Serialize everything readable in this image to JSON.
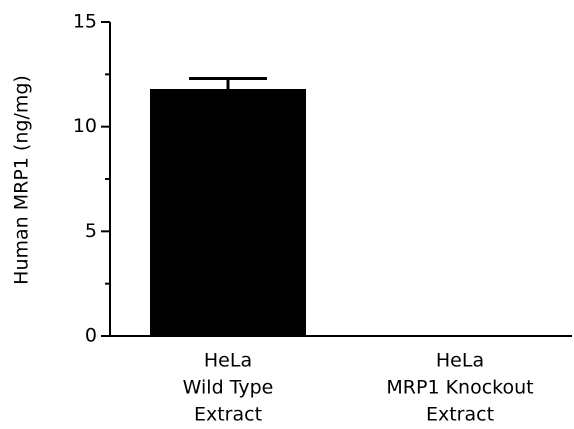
{
  "chart_data": {
    "type": "bar",
    "y_label": "Human MRP1 (ng/mg)",
    "categories": [
      [
        "HeLa",
        "Wild Type",
        "Extract"
      ],
      [
        "HeLa",
        "MRP1 Knockout",
        "Extract"
      ]
    ],
    "values": [
      11.8,
      0
    ],
    "errors": [
      0.5,
      null
    ],
    "color": "#000000",
    "ylim": [
      0,
      15
    ],
    "yticks": [
      0,
      5,
      10,
      15
    ],
    "minor_yticks": [
      2.5,
      7.5,
      12.5
    ]
  }
}
